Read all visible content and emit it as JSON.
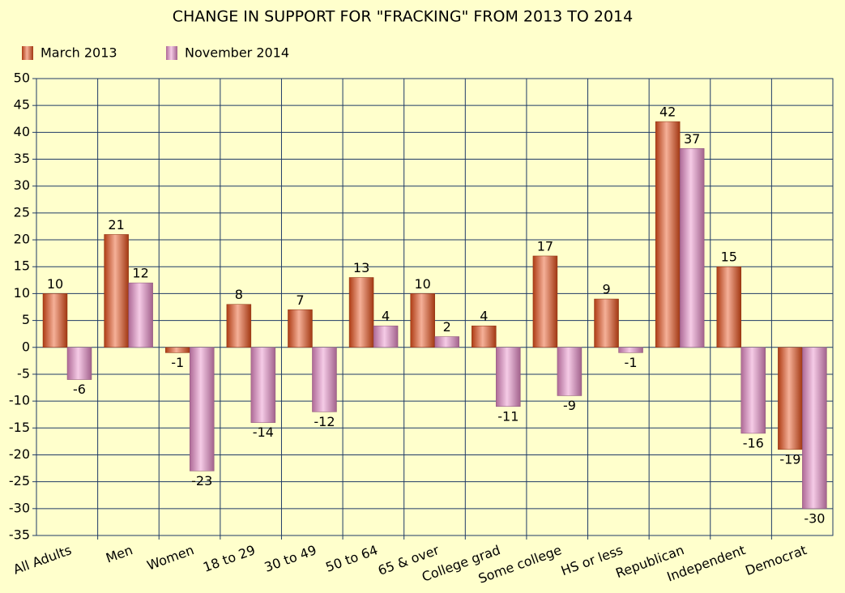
{
  "chart_data": {
    "type": "bar",
    "title": "CHANGE IN SUPPORT FOR \"FRACKING\" FROM 2013 TO 2014",
    "categories": [
      "All Adults",
      "Men",
      "Women",
      "18 to 29",
      "30 to 49",
      "50 to 64",
      "65 & over",
      "College grad",
      "Some college",
      "HS or less",
      "Republican",
      "Independent",
      "Democrat"
    ],
    "series": [
      {
        "name": "March 2013",
        "color": "#e8501a",
        "values": [
          10,
          21,
          -1,
          8,
          7,
          13,
          10,
          4,
          17,
          9,
          42,
          15,
          -19
        ]
      },
      {
        "name": "November 2014",
        "color": "#e88cc8",
        "values": [
          -6,
          12,
          -23,
          -14,
          -12,
          4,
          2,
          -11,
          -9,
          -1,
          37,
          -16,
          -30
        ]
      }
    ],
    "ylim": [
      -35,
      50
    ],
    "yticks": [
      -35,
      -30,
      -25,
      -20,
      -15,
      -10,
      -5,
      0,
      5,
      10,
      15,
      20,
      25,
      30,
      35,
      40,
      45,
      50
    ],
    "grid": true
  }
}
